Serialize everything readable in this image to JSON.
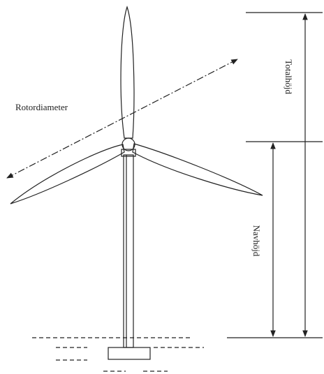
{
  "labels": {
    "rotor_diameter": "Rotordiameter",
    "total_height": "Totalhöjd",
    "hub_height": "Navhöjd"
  }
}
